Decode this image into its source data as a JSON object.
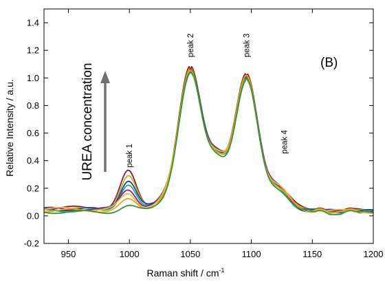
{
  "chart_data": {
    "type": "line",
    "panel_label": "(B)",
    "xlabel": "Raman shift / cm",
    "xlabel_sup": "-1",
    "ylabel": "Relative Intensity / a.u.",
    "xlim": [
      930,
      1200
    ],
    "ylim": [
      -0.2,
      1.5
    ],
    "x_ticks": [
      950,
      1000,
      1050,
      1100,
      1150,
      1200
    ],
    "y_ticks": [
      -0.2,
      0.0,
      0.2,
      0.4,
      0.6,
      0.8,
      1.0,
      1.2,
      1.4
    ],
    "grid": false,
    "annotation": "UREA concentration",
    "peak_labels": [
      {
        "text": "peak 1",
        "x": 1000,
        "y": 0.35
      },
      {
        "text": "peak 2",
        "x": 1050,
        "y": 1.15
      },
      {
        "text": "peak 3",
        "x": 1096,
        "y": 1.15
      },
      {
        "text": "peak 4",
        "x": 1127,
        "y": 0.45
      }
    ],
    "x": [
      930,
      940,
      950,
      960,
      970,
      980,
      985,
      990,
      995,
      998,
      1002,
      1006,
      1010,
      1015,
      1020,
      1025,
      1030,
      1035,
      1040,
      1045,
      1048,
      1050,
      1052,
      1055,
      1060,
      1065,
      1070,
      1075,
      1080,
      1085,
      1090,
      1093,
      1095,
      1097,
      1100,
      1105,
      1110,
      1115,
      1120,
      1125,
      1130,
      1140,
      1150,
      1160,
      1170,
      1180,
      1190,
      1200
    ],
    "series": [
      {
        "color": "#8b1a3a",
        "peak1": 0.3,
        "base": 0.06,
        "p2": 1.06,
        "p3": 1.02
      },
      {
        "color": "#b5b51f",
        "peak1": 0.27,
        "base": 0.05,
        "p2": 1.05,
        "p3": 1.01
      },
      {
        "color": "#1f3f8f",
        "peak1": 0.24,
        "base": 0.05,
        "p2": 1.05,
        "p3": 1.01
      },
      {
        "color": "#2aa0a0",
        "peak1": 0.22,
        "base": 0.04,
        "p2": 1.04,
        "p3": 1.0
      },
      {
        "color": "#7a2a7a",
        "peak1": 0.18,
        "base": 0.05,
        "p2": 1.05,
        "p3": 1.01
      },
      {
        "color": "#e8b84a",
        "peak1": 0.14,
        "base": 0.05,
        "p2": 1.04,
        "p3": 1.0
      },
      {
        "color": "#f0a020",
        "peak1": 0.1,
        "base": 0.04,
        "p2": 1.05,
        "p3": 1.02
      },
      {
        "color": "#2e9a2e",
        "peak1": 0.06,
        "base": 0.03,
        "p2": 1.04,
        "p3": 1.0
      }
    ]
  },
  "colors": {
    "axis": "#000000",
    "arrow": "#707070"
  }
}
